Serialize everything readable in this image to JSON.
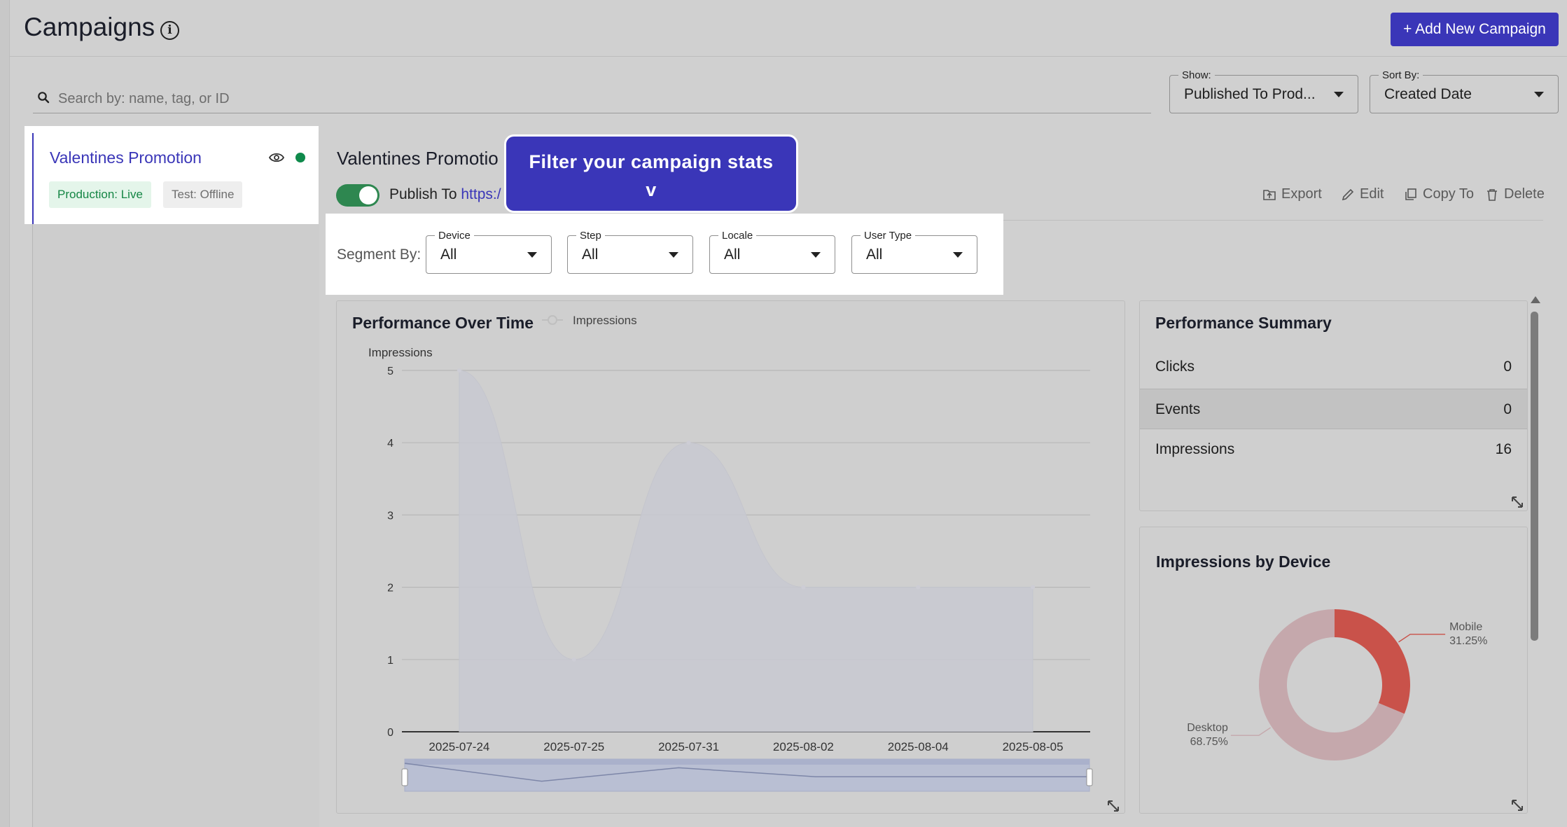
{
  "header": {
    "title": "Campaigns",
    "info_icon": "info-icon",
    "add_button_label": "+ Add New Campaign"
  },
  "search": {
    "placeholder": "Search by: name, tag, or ID",
    "value": ""
  },
  "filters": {
    "show": {
      "label": "Show:",
      "value": "Published To Prod..."
    },
    "sort_by": {
      "label": "Sort By:",
      "value": "Created Date"
    }
  },
  "campaign_list": [
    {
      "name": "Valentines Promotion",
      "production_badge": "Production: Live",
      "test_badge": "Test: Offline",
      "status_color": "#0f8a4b"
    }
  ],
  "campaign_detail": {
    "title": "Valentines Promotio",
    "publish_label": "Publish To",
    "publish_link": "https:/",
    "publish_enabled": true,
    "actions": {
      "export": "Export",
      "edit": "Edit",
      "copy_to": "Copy To",
      "delete": "Delete"
    }
  },
  "tooltip": {
    "text": "Filter your campaign stats",
    "arrow": "v"
  },
  "segment": {
    "label": "Segment By:",
    "device": {
      "label": "Device",
      "value": "All"
    },
    "step": {
      "label": "Step",
      "value": "All"
    },
    "locale": {
      "label": "Locale",
      "value": "All"
    },
    "user_type": {
      "label": "User Type",
      "value": "All"
    }
  },
  "performance_summary": {
    "title": "Performance Summary",
    "rows": [
      {
        "label": "Clicks",
        "value": "0"
      },
      {
        "label": "Events",
        "value": "0"
      },
      {
        "label": "Impressions",
        "value": "16"
      }
    ]
  },
  "colors": {
    "accent": "#3a36b8",
    "live_green": "#0f8a4b",
    "mobile_slice": "#c9524a",
    "desktop_slice": "#c5a8ac"
  },
  "chart_data": [
    {
      "type": "area",
      "title": "Performance Over Time",
      "ylabel": "Impressions",
      "legend": [
        "Impressions"
      ],
      "legend_position": "top-center",
      "x": [
        "2025-07-24",
        "2025-07-25",
        "2025-07-31",
        "2025-08-02",
        "2025-08-04",
        "2025-08-05"
      ],
      "series": [
        {
          "name": "Impressions",
          "values": [
            5,
            1,
            4,
            2,
            2,
            2
          ]
        }
      ],
      "ylim": [
        0,
        5
      ],
      "yticks": [
        0,
        1,
        2,
        3,
        4,
        5
      ],
      "grid": true
    },
    {
      "type": "pie",
      "title": "Impressions by Device",
      "donut": true,
      "slices": [
        {
          "label": "Mobile",
          "value": 31.25,
          "display": "31.25%"
        },
        {
          "label": "Desktop",
          "value": 68.75,
          "display": "68.75%"
        }
      ]
    }
  ]
}
